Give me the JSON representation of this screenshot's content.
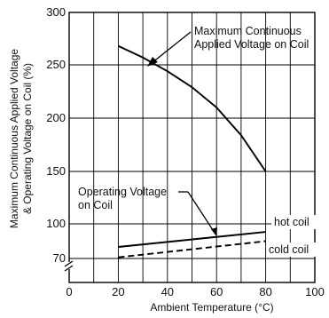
{
  "chart_data": {
    "type": "line",
    "title": "",
    "xlabel": "Ambient Temperature (°C)",
    "ylabel_line1": "Maximum Continuous Applied Voltage",
    "ylabel_line2": "& Operating Voltage on Coil (%)",
    "xlim": [
      0,
      100
    ],
    "x_ticks": [
      0,
      20,
      40,
      60,
      80,
      100
    ],
    "x_tick_labels": [
      "0",
      "20",
      "40",
      "60",
      "80",
      "100"
    ],
    "y_ticks": [
      70,
      100,
      150,
      200,
      250,
      300
    ],
    "y_tick_labels": [
      "70",
      "100",
      "150",
      "200",
      "250",
      "300"
    ],
    "y_axis_break": "between 0 and 70",
    "grid": true,
    "series": [
      {
        "name": "Maximum Continuous Applied Voltage on Coil",
        "style": "solid",
        "x": [
          20,
          30,
          40,
          50,
          60,
          70,
          80
        ],
        "y": [
          268,
          257,
          244,
          229,
          210,
          184,
          150
        ]
      },
      {
        "name": "hot coil",
        "style": "solid",
        "x": [
          20,
          80
        ],
        "y": [
          80,
          93
        ]
      },
      {
        "name": "cold coil",
        "style": "dashed",
        "x": [
          20,
          80
        ],
        "y": [
          71,
          85
        ]
      }
    ],
    "annotations": {
      "max_voltage_line1": "Maximum Continuous",
      "max_voltage_line2": "Applied Voltage on Coil",
      "operating_line1": "Operating Voltage",
      "operating_line2": "on Coil",
      "hot": "hot  coil",
      "cold": "cold  coil"
    }
  }
}
